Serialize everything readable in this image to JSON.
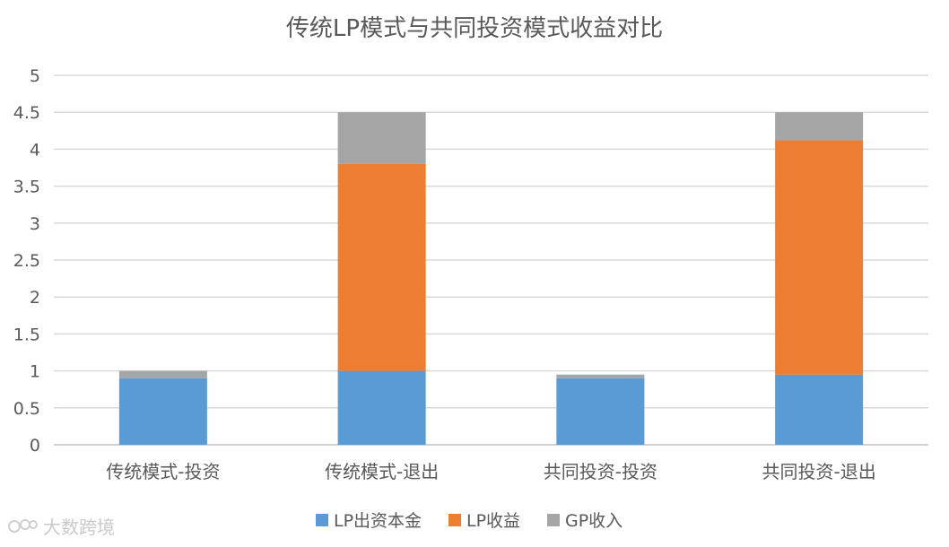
{
  "chart_data": {
    "type": "bar",
    "stacked": true,
    "title": "传统LP模式与共同投资模式收益对比",
    "categories": [
      "传统模式-投资",
      "传统模式-退出",
      "共同投资-投资",
      "共同投资-退出"
    ],
    "series": [
      {
        "name": "LP出资本金",
        "color": "#5b9bd5",
        "values": [
          0.9,
          1.0,
          0.9,
          0.95
        ]
      },
      {
        "name": "LP收益",
        "color": "#ed7d31",
        "values": [
          0,
          2.8,
          0,
          3.17
        ]
      },
      {
        "name": "GP收入",
        "color": "#a5a5a5",
        "values": [
          0.1,
          0.7,
          0.05,
          0.38
        ]
      }
    ],
    "ylim": [
      0,
      5
    ],
    "yticks": [
      "0",
      "0.5",
      "1",
      "1.5",
      "2",
      "2.5",
      "3",
      "3.5",
      "4",
      "4.5",
      "5"
    ],
    "ytick_values": [
      0,
      0.5,
      1,
      1.5,
      2,
      2.5,
      3,
      3.5,
      4,
      4.5,
      5
    ],
    "grid": true,
    "legend_position": "bottom"
  },
  "watermark": {
    "text": "大数跨境",
    "icon": "logo-icon"
  }
}
